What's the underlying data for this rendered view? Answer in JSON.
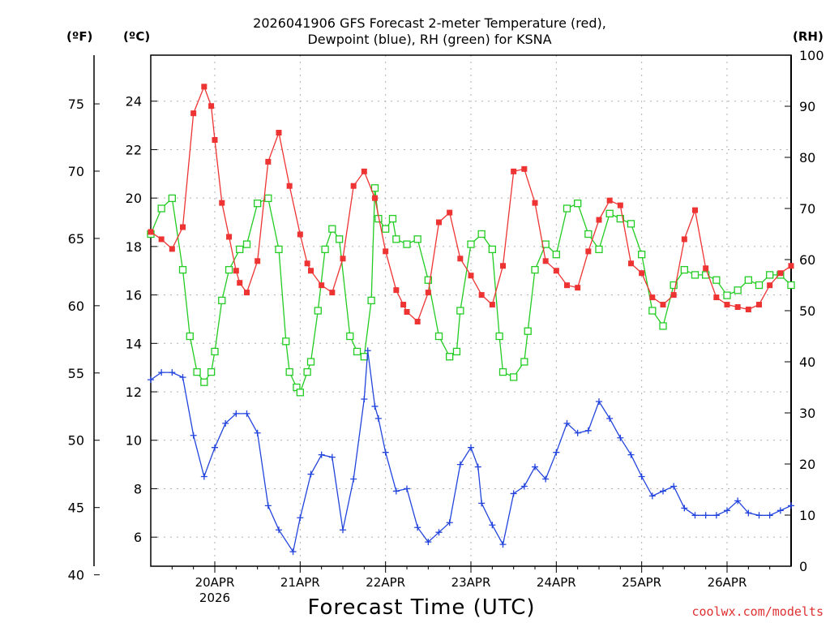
{
  "title_line1": "2026041906 GFS Forecast 2-meter Temperature (red),",
  "title_line2": "Dewpoint (blue), RH (green) for KSNA",
  "unit_f": "(ºF)",
  "unit_c": "(ºC)",
  "unit_rh": "(RH)",
  "xlabel": "Forecast Time (UTC)",
  "credit": "coolwx.com/modelts",
  "colors": {
    "temperature": "#ee3333",
    "dewpoint": "#2244dd",
    "rh": "#22cc22",
    "grid": "#b0b0b0"
  },
  "chart_data": {
    "type": "line",
    "x_unit": "hours since 2026-04-19 06 UTC",
    "x_range": [
      0,
      180
    ],
    "c_range": [
      4.8,
      25.9
    ],
    "c_ticks": [
      6,
      8,
      10,
      12,
      14,
      16,
      18,
      20,
      22,
      24
    ],
    "f_ticks": [
      40,
      45,
      50,
      55,
      60,
      65,
      70,
      75
    ],
    "rh_range": [
      0,
      100
    ],
    "rh_ticks": [
      0,
      10,
      20,
      30,
      40,
      50,
      60,
      70,
      80,
      90,
      100
    ],
    "x_tick_hours": [
      18,
      42,
      66,
      90,
      114,
      138,
      162
    ],
    "x_tick_labels": [
      "20APR",
      "21APR",
      "22APR",
      "23APR",
      "24APR",
      "25APR",
      "26APR"
    ],
    "x_year_label": "2026",
    "series": [
      {
        "name": "Temperature",
        "unit": "C",
        "marker": "filled-square",
        "x": [
          0,
          3,
          6,
          9,
          12,
          15,
          17,
          18,
          20,
          22,
          24,
          25,
          27,
          30,
          33,
          36,
          39,
          42,
          44,
          45,
          48,
          51,
          54,
          57,
          60,
          63,
          66,
          69,
          71,
          72,
          75,
          78,
          81,
          84,
          87,
          90,
          93,
          96,
          99,
          102,
          105,
          108,
          111,
          114,
          117,
          120,
          123,
          126,
          129,
          132,
          135,
          138,
          141,
          144,
          147,
          150,
          153,
          156,
          159,
          162,
          165,
          168,
          171,
          174,
          177,
          180
        ],
        "values": [
          18.6,
          18.3,
          17.9,
          18.8,
          23.5,
          24.6,
          23.8,
          22.4,
          19.8,
          18.4,
          17.0,
          16.5,
          16.1,
          17.4,
          21.5,
          22.7,
          20.5,
          18.5,
          17.3,
          17.0,
          16.4,
          16.1,
          17.5,
          20.5,
          21.1,
          20.0,
          17.8,
          16.2,
          15.6,
          15.3,
          14.9,
          16.1,
          19.0,
          19.4,
          17.5,
          16.8,
          16.0,
          15.6,
          17.2,
          21.1,
          21.2,
          19.8,
          17.4,
          17.0,
          16.4,
          16.3,
          17.8,
          19.1,
          19.9,
          19.7,
          17.3,
          16.9,
          15.9,
          15.6,
          16.0,
          18.3,
          19.5,
          17.1,
          15.9,
          15.6,
          15.5,
          15.4,
          15.6,
          16.4,
          16.9,
          17.2
        ],
        "x_unused_note": ""
      },
      {
        "name": "Dewpoint",
        "unit": "C",
        "marker": "plus",
        "x": [
          0,
          3,
          6,
          9,
          12,
          15,
          18,
          21,
          24,
          27,
          30,
          33,
          36,
          40,
          42,
          45,
          48,
          51,
          54,
          57,
          60,
          61,
          63,
          64,
          66,
          69,
          72,
          75,
          78,
          81,
          84,
          87,
          90,
          92,
          93,
          96,
          99,
          102,
          105,
          108,
          111,
          114,
          117,
          120,
          123,
          126,
          129,
          132,
          135,
          138,
          141,
          144,
          147,
          150,
          153,
          156,
          159,
          162,
          165,
          168,
          171,
          174,
          177,
          180
        ],
        "values": [
          12.5,
          12.8,
          12.8,
          12.6,
          10.2,
          8.5,
          9.7,
          10.7,
          11.1,
          11.1,
          10.3,
          7.3,
          6.3,
          5.4,
          6.8,
          8.6,
          9.4,
          9.3,
          6.3,
          8.4,
          11.7,
          13.7,
          11.4,
          10.9,
          9.5,
          7.9,
          8.0,
          6.4,
          5.8,
          6.2,
          6.6,
          9.0,
          9.7,
          8.9,
          7.4,
          6.5,
          5.7,
          7.8,
          8.1,
          8.9,
          8.4,
          9.5,
          10.7,
          10.3,
          10.4,
          11.6,
          10.9,
          10.1,
          9.4,
          8.5,
          7.7,
          7.9,
          8.1,
          7.2,
          6.9,
          6.9,
          6.9,
          7.1,
          7.5,
          7.0,
          6.9,
          6.9,
          7.1,
          7.3
        ],
        "x_unused_note": ""
      },
      {
        "name": "RH",
        "unit": "%",
        "marker": "open-square",
        "x": [
          0,
          3,
          6,
          9,
          11,
          13,
          15,
          17,
          18,
          20,
          22,
          25,
          27,
          30,
          33,
          36,
          38,
          39,
          41,
          42,
          44,
          45,
          47,
          49,
          51,
          53,
          56,
          58,
          60,
          62,
          63,
          64,
          66,
          68,
          69,
          72,
          75,
          78,
          81,
          84,
          86,
          87,
          90,
          93,
          96,
          98,
          99,
          102,
          105,
          106,
          108,
          111,
          114,
          117,
          120,
          123,
          126,
          129,
          132,
          135,
          138,
          141,
          144,
          147,
          150,
          153,
          156,
          159,
          162,
          165,
          168,
          171,
          174,
          177,
          180
        ],
        "values": [
          65,
          70,
          72,
          58,
          45,
          38,
          36,
          38,
          42,
          52,
          58,
          62,
          63,
          71,
          72,
          62,
          44,
          38,
          35,
          34,
          38,
          40,
          50,
          62,
          66,
          64,
          45,
          42,
          41,
          52,
          74,
          68,
          66,
          68,
          64,
          63,
          64,
          56,
          45,
          41,
          42,
          50,
          63,
          65,
          62,
          45,
          38,
          37,
          40,
          46,
          58,
          63,
          61,
          70,
          71,
          65,
          62,
          69,
          68,
          67,
          61,
          50,
          47,
          55,
          58,
          57,
          57,
          56,
          53,
          54,
          56,
          55,
          57,
          57,
          55
        ],
        "x_unused_note": ""
      }
    ]
  }
}
